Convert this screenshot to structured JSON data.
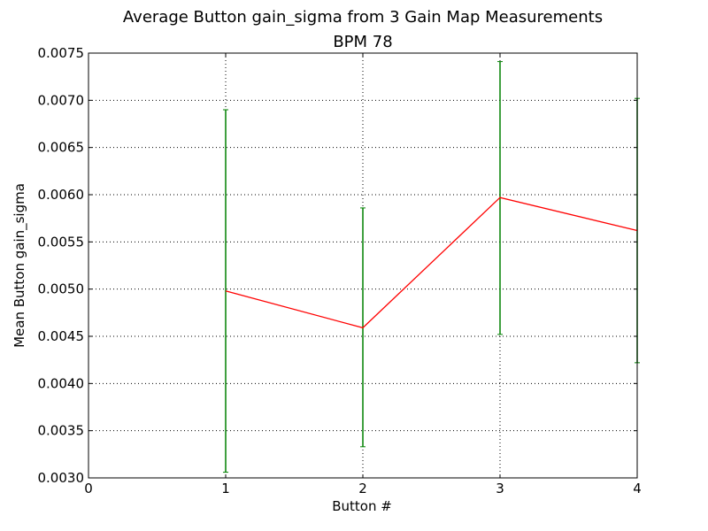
{
  "chart_data": {
    "type": "line",
    "title": "Average Button gain_sigma from 3 Gain Map Measurements",
    "subtitle": "BPM 78",
    "xlabel": "Button #",
    "ylabel": "Mean Button gain_sigma",
    "xlim": [
      0,
      4
    ],
    "ylim": [
      0.003,
      0.0075
    ],
    "x_ticks": [
      "0",
      "1",
      "2",
      "3",
      "4"
    ],
    "y_ticks": [
      "0.0030",
      "0.0035",
      "0.0040",
      "0.0045",
      "0.0050",
      "0.0055",
      "0.0060",
      "0.0065",
      "0.0070",
      "0.0075"
    ],
    "grid": true,
    "series": [
      {
        "color": "#ff0000",
        "errorbar_color": "#008000",
        "x": [
          1,
          2,
          3,
          4
        ],
        "y": [
          0.00498,
          0.00459,
          0.00597,
          0.00562
        ],
        "yerr_low": [
          0.00306,
          0.00333,
          0.00452,
          0.00422
        ],
        "yerr_high": [
          0.0069,
          0.00586,
          0.00741,
          0.00702
        ]
      }
    ]
  }
}
